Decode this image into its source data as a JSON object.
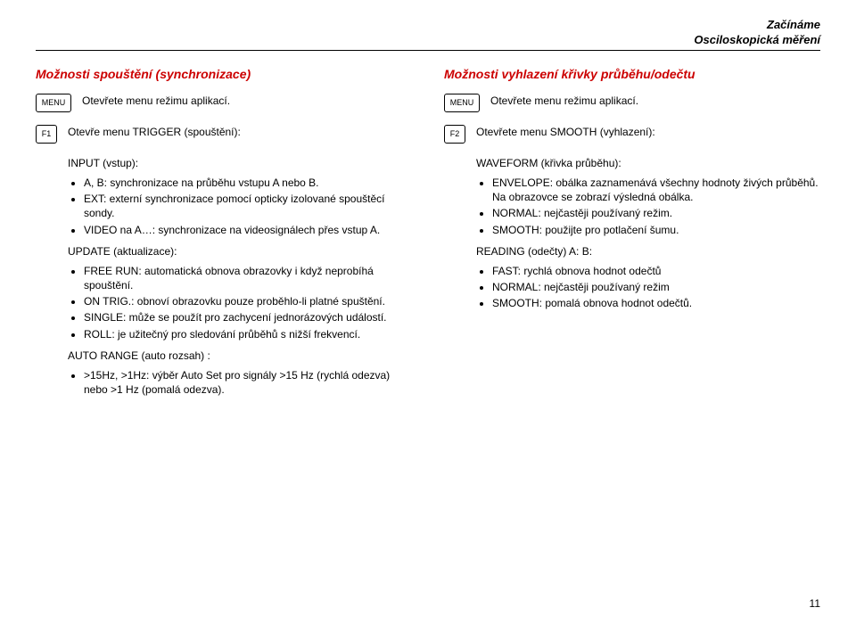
{
  "header": {
    "line1": "Začínáme",
    "line2": "Osciloskopická měření"
  },
  "left": {
    "title": "Možnosti spouštění (synchronizace)",
    "menuKey": "MENU",
    "openApp": "Otevřete menu režimu aplikací.",
    "fnKey": "F1",
    "openTrigger": "Otevře menu TRIGGER (spouštění):",
    "inputLabel": "INPUT (vstup):",
    "input": [
      "A, B: synchronizace na průběhu vstupu A nebo B.",
      "EXT: externí synchronizace pomocí opticky izolované spouštěcí sondy.",
      "VIDEO na A…: synchronizace na videosignálech přes vstup A."
    ],
    "updateLabel": "UPDATE (aktualizace):",
    "update": [
      "FREE RUN: automatická obnova obrazovky i když neprobíhá spouštění.",
      "ON TRIG.: obnoví obrazovku pouze proběhlo-li platné spuštění.",
      "SINGLE: může se použít pro zachycení jednorázových událostí.",
      " ROLL: je užitečný pro sledování průběhů s nižší frekvencí."
    ],
    "autoRangeLabel": "AUTO RANGE (auto rozsah) :",
    "autoRange": [
      ">15Hz, >1Hz: výběr Auto Set pro signály >15 Hz (rychlá odezva) nebo >1 Hz (pomalá odezva)."
    ]
  },
  "right": {
    "title": "Možnosti vyhlazení křivky průběhu/odečtu",
    "menuKey": "MENU",
    "openApp": "Otevřete menu režimu aplikací.",
    "fnKey": "F2",
    "openSmooth": "Otevřete menu SMOOTH (vyhlazení):",
    "waveformLabel": "WAVEFORM (křivka průběhu):",
    "waveform": [
      "ENVELOPE: obálka zaznamenává všechny hodnoty živých průběhů. Na obrazovce se zobrazí výsledná obálka.",
      "NORMAL: nejčastěji používaný režim.",
      "SMOOTH: použijte pro potlačení šumu."
    ],
    "readingLabel": "READING (odečty) A: B:",
    "reading": [
      "FAST: rychlá obnova hodnot odečtů",
      "NORMAL: nejčastěji používaný režim",
      "SMOOTH: pomalá obnova hodnot odečtů."
    ]
  },
  "pageNum": "11",
  "colors": {
    "title": "#cc0000",
    "text": "#000000",
    "bg": "#ffffff"
  }
}
